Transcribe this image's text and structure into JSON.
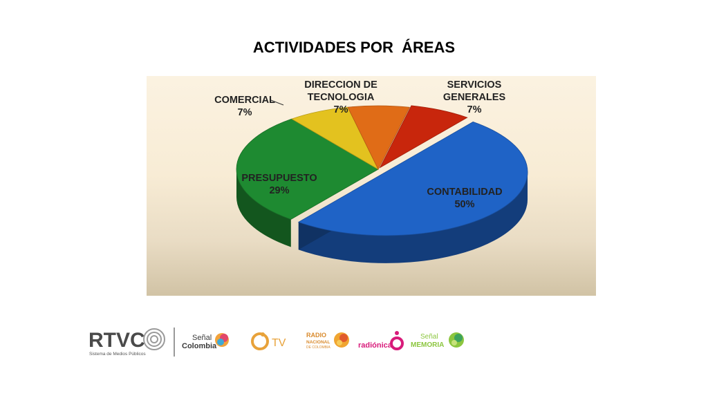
{
  "slide": {
    "title": "ACTIVIDADES POR  ÁREAS"
  },
  "chart_data": {
    "type": "pie",
    "title": "ACTIVIDADES POR  ÁREAS",
    "series": [
      {
        "label": "CONTABILIDAD",
        "value": 50,
        "pct": "50%",
        "color": "#1f63c6"
      },
      {
        "label": "PRESUPUESTO",
        "value": 29,
        "pct": "29%",
        "color": "#1e8a31"
      },
      {
        "label": "COMERCIAL",
        "value": 7,
        "pct": "7%",
        "color": "#e3c21f"
      },
      {
        "label": "DIRECCION DE TECNOLOGIA",
        "value": 7,
        "pct": "7%",
        "color": "#e06c17"
      },
      {
        "label": "SERVICIOS GENERALES",
        "value": 7,
        "pct": "7%",
        "color": "#c8260c"
      }
    ],
    "legend": "none",
    "labels": "on-chart"
  },
  "logos": {
    "rtvc": "RTVC",
    "rtvc_sub": "Sistema de Medios Públicos",
    "senal": "Señal",
    "colombia": "Colombia",
    "tv": "TV",
    "radio": "RADIO",
    "nacional": "NACIONAL",
    "de_colombia": "DE COLOMBIA",
    "radionica": "radiónica",
    "senal2": "Señal",
    "memoria": "MEMORIA",
    "colors": {
      "rtvc": "#4a4a4a",
      "senal": "#3a3a3a",
      "tv": "#e8a23a",
      "radio": "#d98a2c",
      "radionica": "#d81b7a",
      "memoria": "#8cc63f"
    }
  }
}
